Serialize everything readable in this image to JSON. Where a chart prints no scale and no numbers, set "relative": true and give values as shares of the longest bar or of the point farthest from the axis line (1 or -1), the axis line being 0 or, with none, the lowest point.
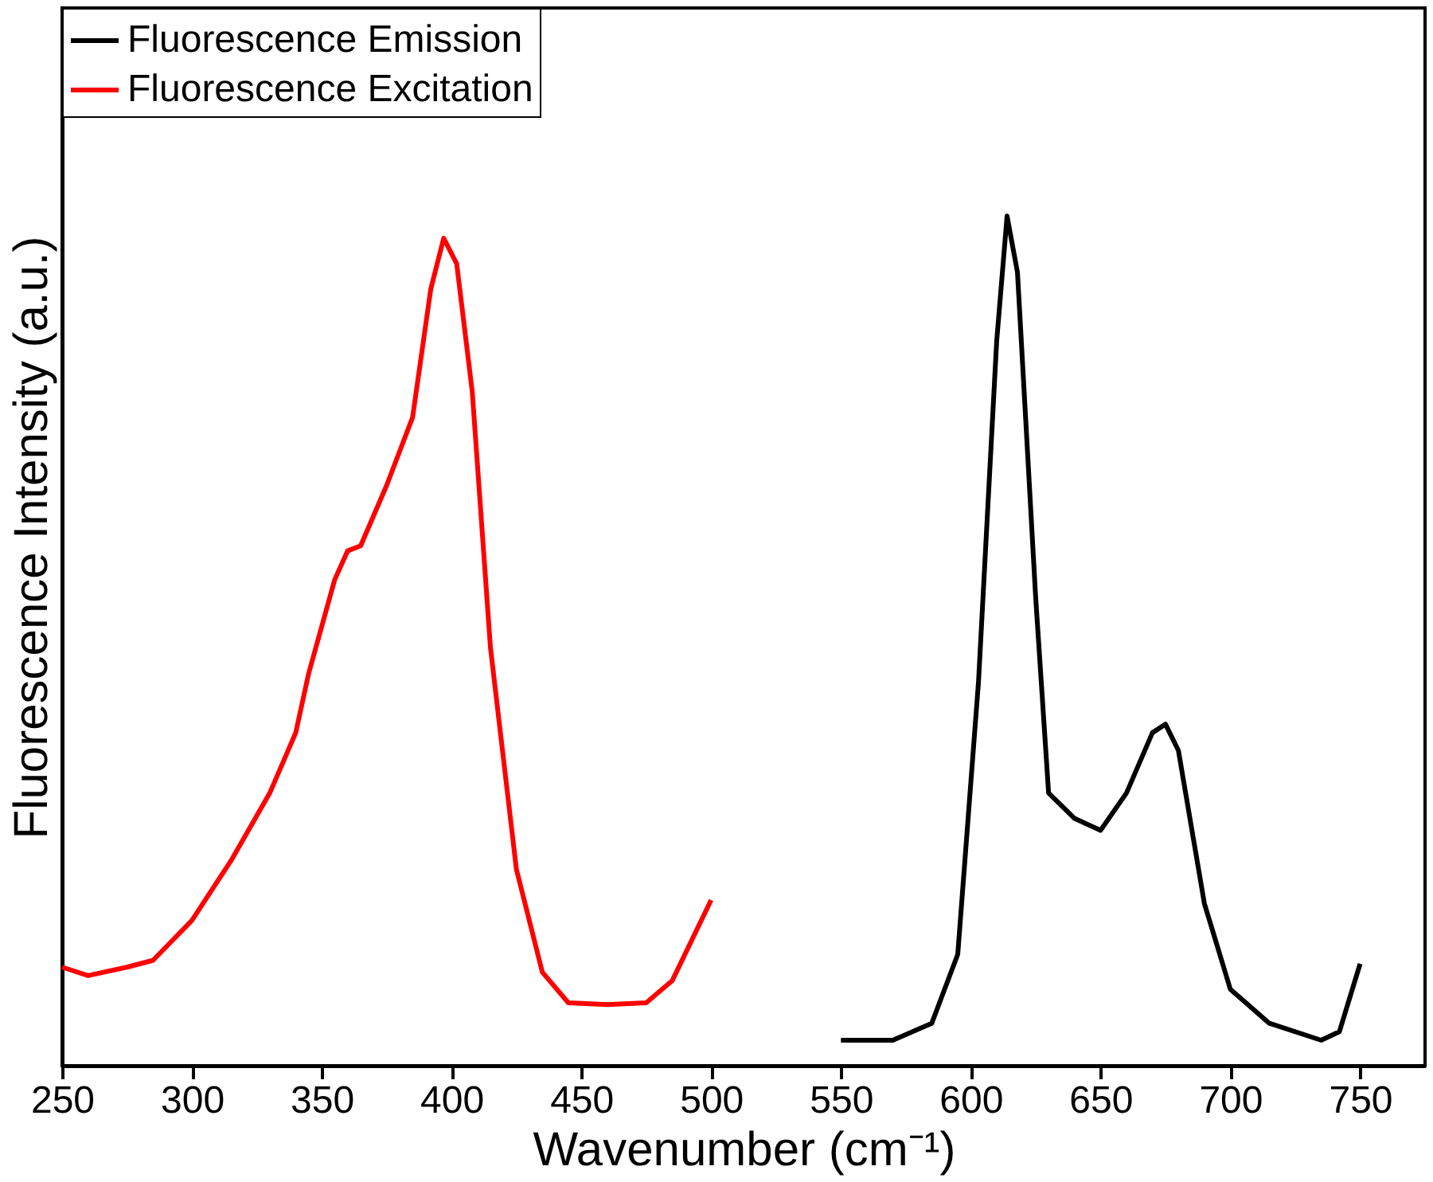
{
  "chart_data": {
    "type": "line",
    "xlabel": "Wavenumber (cm⁻¹)",
    "ylabel": "Fluorescence Intensity (a.u.)",
    "relative": true,
    "xlim": [
      250,
      775
    ],
    "xticks": [
      250,
      300,
      350,
      400,
      450,
      500,
      550,
      600,
      650,
      700,
      750
    ],
    "grid": false,
    "legend": "top left",
    "marker": "none",
    "line_style": "solid",
    "series": [
      {
        "name": "Fluorescence Emission",
        "color": "#000000",
        "x": [
          550,
          570,
          585,
          595,
          603,
          610,
          614,
          618,
          625,
          630,
          640,
          650,
          660,
          670,
          675,
          680,
          690,
          700,
          715,
          735,
          742,
          750
        ],
        "values": [
          0.03,
          0.03,
          0.05,
          0.131,
          0.452,
          0.853,
          1.0,
          0.934,
          0.552,
          0.321,
          0.291,
          0.277,
          0.321,
          0.392,
          0.402,
          0.371,
          0.191,
          0.09,
          0.05,
          0.03,
          0.04,
          0.12
        ]
      },
      {
        "name": "Fluorescence Excitation",
        "color": "#ff0000",
        "x": [
          250,
          260,
          275,
          285,
          300,
          315,
          330,
          340,
          345,
          355,
          360,
          365,
          375,
          385,
          392,
          397,
          402,
          408,
          415,
          425,
          435,
          445,
          460,
          475,
          485,
          500
        ],
        "values": [
          0.116,
          0.106,
          0.116,
          0.124,
          0.171,
          0.241,
          0.321,
          0.392,
          0.462,
          0.572,
          0.606,
          0.612,
          0.683,
          0.763,
          0.914,
          0.974,
          0.944,
          0.793,
          0.492,
          0.231,
          0.11,
          0.074,
          0.072,
          0.074,
          0.1,
          0.195
        ]
      }
    ]
  }
}
